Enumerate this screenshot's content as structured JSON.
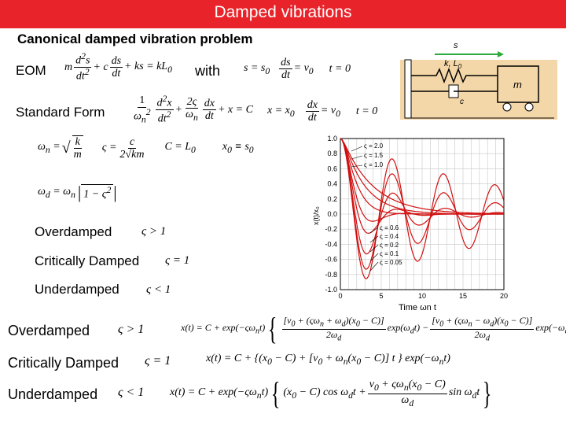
{
  "header": {
    "title": "Damped vibrations"
  },
  "subtitle": "Canonical damped vibration problem",
  "labels": {
    "eom": "EOM",
    "with": "with",
    "standard_form": "Standard Form",
    "overdamped": "Overdamped",
    "critically_damped": "Critically Damped",
    "underdamped": "Underdamped"
  },
  "conditions": {
    "over": "ς > 1",
    "crit": "ς = 1",
    "under": "ς < 1"
  },
  "diagram": {
    "s_label": "s",
    "spring_label": "k, L",
    "spring_sub": "0",
    "damper_label": "c",
    "mass_label": "m",
    "colors": {
      "ground": "#f4d7a8",
      "arrow": "#2eaa3c"
    }
  },
  "plot": {
    "ylabel": "x(t)/x₀",
    "xlabel": "Time ωn t",
    "yticks": [
      "1.0",
      "0.8",
      "0.6",
      "0.4",
      "0.2",
      "0.0",
      "-0.2",
      "-0.4",
      "-0.6",
      "-0.8",
      "-1.0"
    ],
    "xticks": [
      "0",
      "5",
      "10",
      "15",
      "20"
    ],
    "zeta_top": [
      "ς = 2.0",
      "ς = 1.5",
      "ς = 1.0"
    ],
    "zeta_bottom": [
      "ς = 0.6",
      "ς = 0.4",
      "ς = 0.2",
      "ς = 0.1",
      "ς = 0.05"
    ],
    "zeta_values": [
      2.0,
      1.5,
      1.0,
      0.6,
      0.4,
      0.2,
      0.1,
      0.05
    ],
    "colors": {
      "curve": "#d01010",
      "grid": "#c8c8c8"
    }
  }
}
